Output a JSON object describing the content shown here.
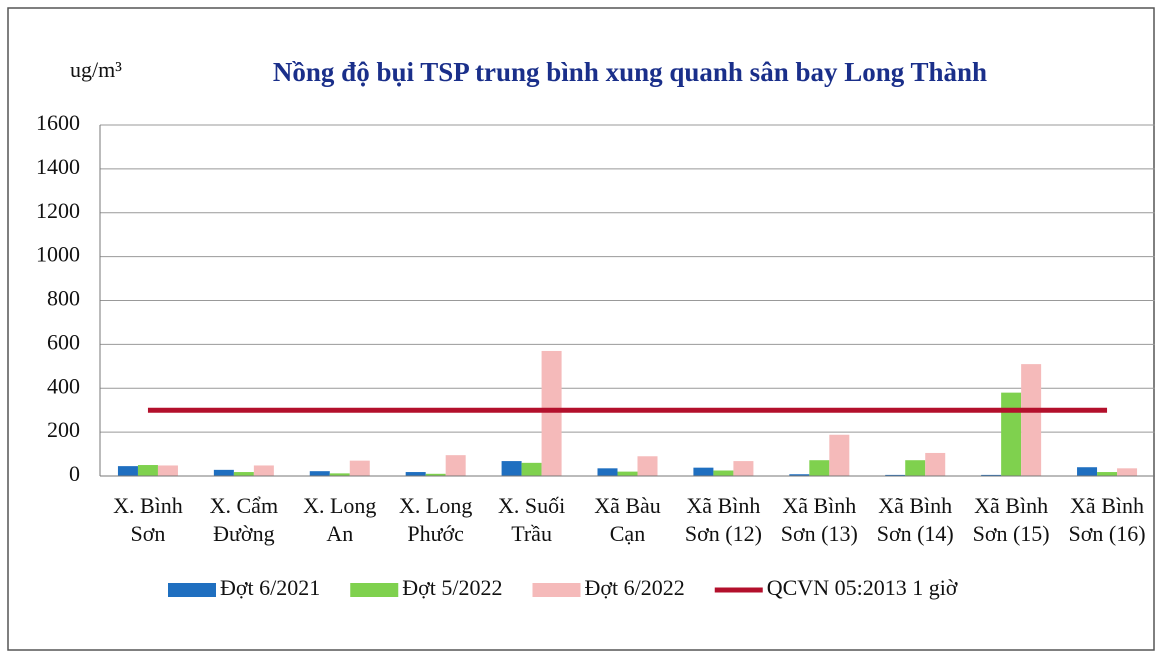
{
  "chart_data": {
    "type": "bar",
    "title": "Nồng độ bụi TSP trung bình xung quanh sân bay Long Thành",
    "y_label": "ug/m³",
    "categories": [
      "X. Bình Sơn",
      "X. Cẩm Đường",
      "X. Long An",
      "X. Long Phước",
      "X. Suối Trầu",
      "Xã Bàu Cạn",
      "Xã Bình Sơn (12)",
      "Xã Bình Sơn (13)",
      "Xã Bình Sơn (14)",
      "Xã Bình Sơn (15)",
      "Xã Bình Sơn (16)"
    ],
    "series": [
      {
        "name": "Đợt 6/2021",
        "color": "#1f6fc0",
        "values": [
          45,
          28,
          22,
          18,
          68,
          35,
          38,
          8,
          5,
          5,
          40
        ]
      },
      {
        "name": "Đợt 5/2022",
        "color": "#7fd14e",
        "values": [
          50,
          18,
          12,
          10,
          60,
          20,
          25,
          72,
          72,
          380,
          18
        ]
      },
      {
        "name": "Đợt 6/2022",
        "color": "#f5baba",
        "values": [
          48,
          48,
          70,
          95,
          570,
          90,
          68,
          188,
          105,
          510,
          35
        ]
      },
      {
        "name": "QCVN 05:2013 1 giờ",
        "color": "#b3102c",
        "type": "line",
        "values": [
          300,
          300,
          300,
          300,
          300,
          300,
          300,
          300,
          300,
          300,
          300
        ]
      }
    ],
    "ylim": [
      0,
      1600
    ],
    "yticks": [
      0,
      200,
      400,
      600,
      800,
      1000,
      1200,
      1400,
      1600
    ],
    "grid": true,
    "legend": "bottom"
  }
}
